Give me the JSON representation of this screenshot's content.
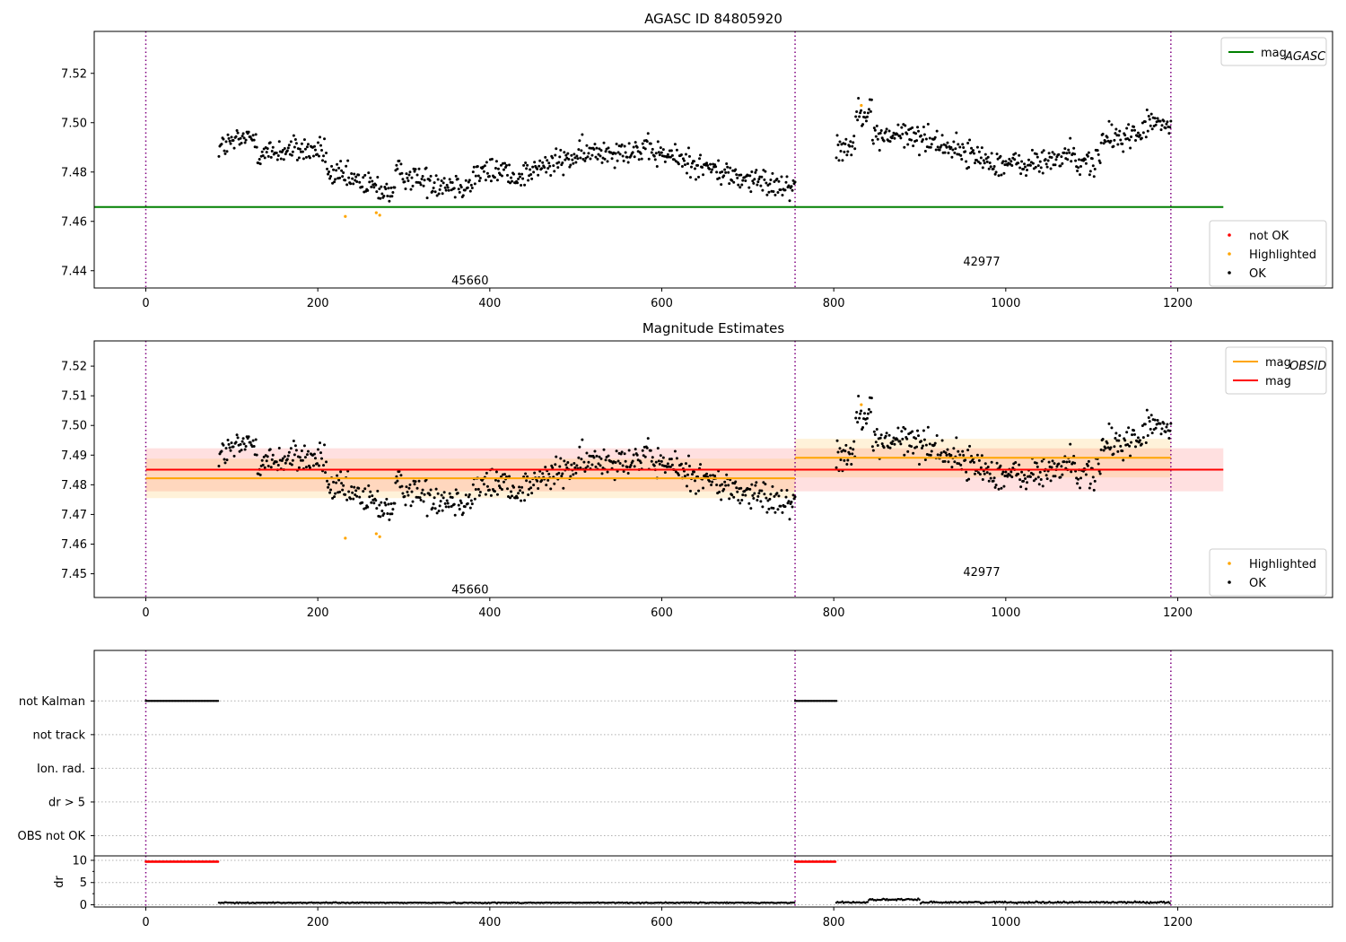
{
  "figure": {
    "background": "#ffffff",
    "colors": {
      "ok": "#000000",
      "highlighted": "#ffa500",
      "not_ok": "#ff0000",
      "mag_agasc": "#008000",
      "mag_obsid": "#ffa500",
      "mag": "#ff0000",
      "obsid_boundary": "#800080"
    }
  },
  "chart_data": [
    {
      "id": "agasc",
      "type": "scatter",
      "title": "AGASC ID 84805920",
      "xlim": [
        -60,
        1380
      ],
      "ylim": [
        7.433,
        7.537
      ],
      "xticks": [
        0,
        200,
        400,
        600,
        800,
        1000,
        1200
      ],
      "yticks": [
        7.44,
        7.46,
        7.48,
        7.5,
        7.52
      ],
      "ytick_labels": [
        "7.44",
        "7.46",
        "7.48",
        "7.50",
        "7.52"
      ],
      "grid": false,
      "obsid_boundaries": [
        0,
        755,
        1192
      ],
      "obsid_labels": [
        {
          "text": "45660",
          "x": 377,
          "y": 7.436
        },
        {
          "text": "42977",
          "x": 972,
          "y": 7.4435
        }
      ],
      "lines": [
        {
          "name": "mag_AGASC",
          "label_main": "mag",
          "label_sub": "AGASC",
          "y": 7.4658,
          "x": [
            -60,
            1253
          ],
          "color": "#008000"
        }
      ],
      "legends": [
        {
          "position": "top-right",
          "entries": [
            {
              "kind": "line",
              "color": "#008000",
              "label_main": "mag",
              "label_sub": "AGASC"
            }
          ]
        },
        {
          "position": "bottom-right",
          "entries": [
            {
              "kind": "dot",
              "color": "#ff0000",
              "label": "not OK"
            },
            {
              "kind": "dot",
              "color": "#ffa500",
              "label": "Highlighted"
            },
            {
              "kind": "dot",
              "color": "#000000",
              "label": "OK"
            }
          ]
        }
      ],
      "segments": [
        {
          "obsid": "45660",
          "x": [
            85,
            755
          ],
          "mean": 7.482,
          "spread": 0.0065
        },
        {
          "obsid": "42977",
          "x": [
            803,
            1192
          ],
          "mean": 7.489,
          "spread": 0.0065
        }
      ],
      "highlighted_points": [
        {
          "x": 232,
          "y": 7.462
        },
        {
          "x": 268,
          "y": 7.4635
        },
        {
          "x": 272,
          "y": 7.4625
        },
        {
          "x": 832,
          "y": 7.507
        }
      ]
    },
    {
      "id": "estimates",
      "type": "scatter",
      "title": "Magnitude Estimates",
      "xlim": [
        -60,
        1380
      ],
      "ylim": [
        7.442,
        7.5285
      ],
      "xticks": [
        0,
        200,
        400,
        600,
        800,
        1000,
        1200
      ],
      "yticks": [
        7.45,
        7.46,
        7.47,
        7.48,
        7.49,
        7.5,
        7.51,
        7.52
      ],
      "ytick_labels": [
        "7.45",
        "7.46",
        "7.47",
        "7.48",
        "7.49",
        "7.50",
        "7.51",
        "7.52"
      ],
      "grid": false,
      "obsid_boundaries": [
        0,
        755,
        1192
      ],
      "obsid_labels": [
        {
          "text": "45660",
          "x": 377,
          "y": 7.4445
        },
        {
          "text": "42977",
          "x": 972,
          "y": 7.4505
        }
      ],
      "bands": [
        {
          "name": "mag",
          "color": "#ff0000",
          "opacity": 0.12,
          "x": [
            0,
            1253
          ],
          "y": [
            7.4778,
            7.4923
          ]
        },
        {
          "name": "mag_OBSID 45660",
          "color": "#ffa500",
          "opacity": 0.15,
          "x": [
            0,
            755
          ],
          "y": [
            7.4755,
            7.4888
          ]
        },
        {
          "name": "mag_OBSID 42977",
          "color": "#ffa500",
          "opacity": 0.15,
          "x": [
            755,
            1192
          ],
          "y": [
            7.4825,
            7.4955
          ]
        }
      ],
      "lines": [
        {
          "name": "mag_OBSID 45660",
          "y": 7.4822,
          "x": [
            0,
            755
          ],
          "color": "#ffa500"
        },
        {
          "name": "mag_OBSID 42977",
          "y": 7.4891,
          "x": [
            755,
            1192
          ],
          "color": "#ffa500"
        },
        {
          "name": "mag",
          "y": 7.4851,
          "x": [
            0,
            1253
          ],
          "color": "#ff0000"
        }
      ],
      "legends": [
        {
          "position": "top-right",
          "entries": [
            {
              "kind": "line",
              "color": "#ffa500",
              "label_main": "mag",
              "label_sub": "OBSID"
            },
            {
              "kind": "line",
              "color": "#ff0000",
              "label_main": "mag",
              "label_sub": ""
            }
          ]
        },
        {
          "position": "bottom-right",
          "entries": [
            {
              "kind": "dot",
              "color": "#ffa500",
              "label": "Highlighted"
            },
            {
              "kind": "dot",
              "color": "#000000",
              "label": "OK"
            }
          ]
        }
      ],
      "segments": [
        {
          "obsid": "45660",
          "x": [
            85,
            755
          ],
          "mean": 7.482,
          "spread": 0.0065
        },
        {
          "obsid": "42977",
          "x": [
            803,
            1192
          ],
          "mean": 7.489,
          "spread": 0.0065
        }
      ],
      "highlighted_points": [
        {
          "x": 232,
          "y": 7.462
        },
        {
          "x": 268,
          "y": 7.4635
        },
        {
          "x": 272,
          "y": 7.4625
        },
        {
          "x": 832,
          "y": 7.507
        }
      ]
    },
    {
      "id": "flags",
      "type": "scatter",
      "title": "",
      "xlim": [
        -60,
        1380
      ],
      "ylim": [
        -0.6,
        5.5
      ],
      "categories": [
        "OBS not OK",
        "dr > 5",
        "Ion. rad.",
        "not track",
        "not Kalman"
      ],
      "category_values": [
        0,
        1,
        2,
        3,
        4
      ],
      "grid": true,
      "obsid_boundaries": [
        0,
        755,
        1192
      ],
      "flag_runs": [
        {
          "flag": "not Kalman",
          "x": [
            0,
            85
          ]
        },
        {
          "flag": "not Kalman",
          "x": [
            755,
            803
          ]
        }
      ]
    },
    {
      "id": "dr",
      "type": "scatter",
      "title": "",
      "xlim": [
        -60,
        1380
      ],
      "ylim": [
        -0.5,
        11
      ],
      "xticks": [
        0,
        200,
        400,
        600,
        800,
        1000,
        1200
      ],
      "yticks": [
        0,
        5,
        10
      ],
      "ytick_labels": [
        "0",
        "5",
        "10"
      ],
      "ylabel": "dr",
      "grid": true,
      "obsid_boundaries": [
        0,
        755,
        1192
      ],
      "capped_runs": [
        {
          "x": [
            0,
            85
          ],
          "y": 9.7,
          "color": "#ff0000"
        },
        {
          "x": [
            755,
            803
          ],
          "y": 9.7,
          "color": "#ff0000"
        }
      ],
      "segments": [
        {
          "x": [
            85,
            755
          ],
          "mean": 0.45,
          "spread": 0.15
        },
        {
          "x": [
            803,
            1192
          ],
          "mean": 0.55,
          "spread": 0.25
        }
      ]
    }
  ]
}
